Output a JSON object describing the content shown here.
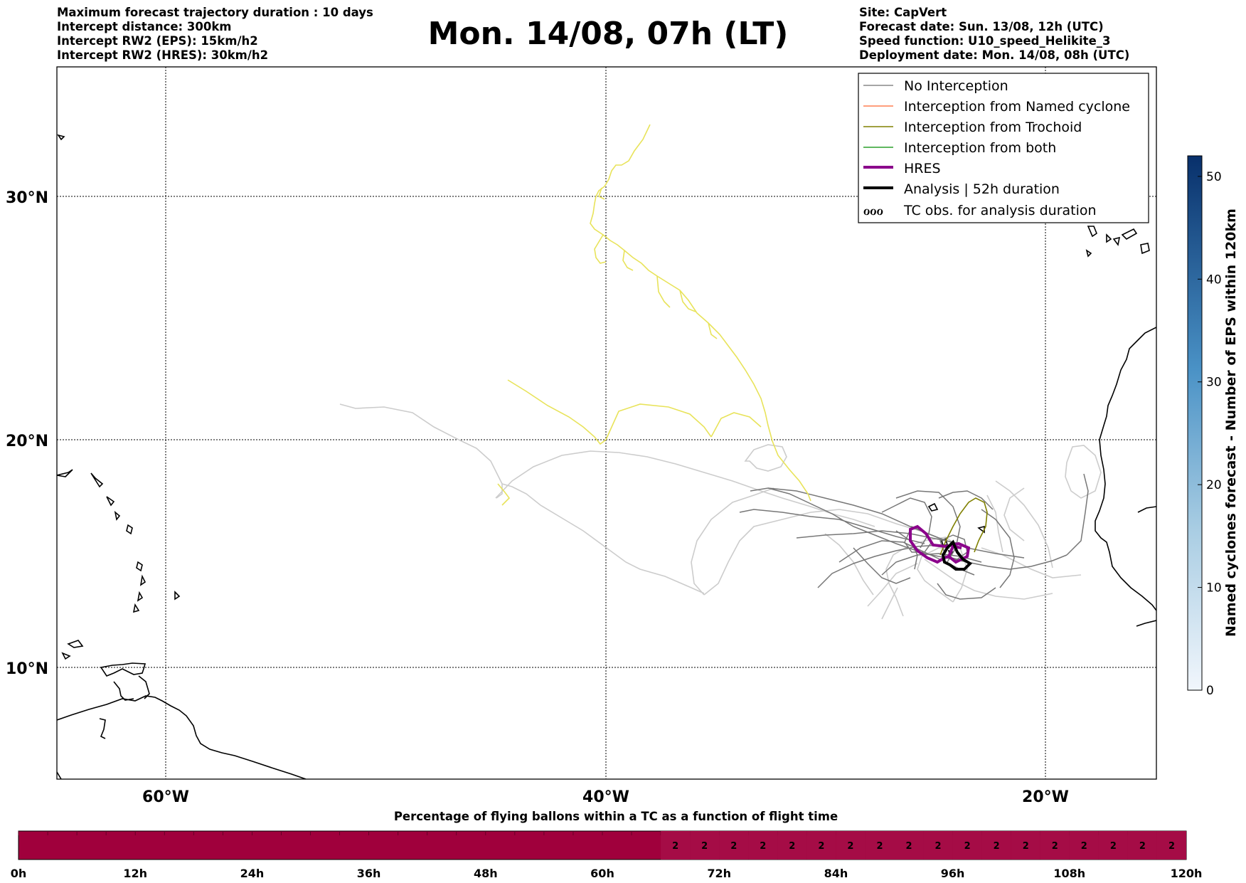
{
  "header": {
    "left_lines": [
      "Maximum forecast trajectory duration : 10 days",
      "Intercept distance: 300km",
      "Intercept RW2 (EPS):  15km/h2",
      "Intercept RW2 (HRES): 30km/h2"
    ],
    "title": "Mon. 14/08, 07h (LT)",
    "right_lines": [
      "Site: CapVert",
      "Forecast date: Sun. 13/08, 12h (UTC)",
      "Speed function: U10_speed_Helikite_3",
      "Deployment date: Mon. 14/08, 08h (UTC)"
    ]
  },
  "map": {
    "lat_labels": [
      "30°N",
      "20°N",
      "10°N"
    ],
    "lon_labels": [
      "60°W",
      "40°W",
      "20°W"
    ],
    "colors": {
      "no_interception": "#888888",
      "no_interception_light": "#cccccc",
      "named_cyclone": "#ff7f50",
      "trochoid": "#808000",
      "both": "#2ca02c",
      "hres": "#8b008b",
      "analysis": "#000000",
      "yellow_track": "#e8e35a"
    },
    "legend": {
      "items": [
        {
          "label": "No Interception",
          "style": "thin-gray"
        },
        {
          "label": "Interception from Named cyclone",
          "style": "thin-coral"
        },
        {
          "label": "Interception from Trochoid",
          "style": "thin-olive"
        },
        {
          "label": "Interception from both",
          "style": "thin-green"
        },
        {
          "label": "HRES",
          "style": "thick-purple"
        },
        {
          "label": "Analysis | 52h duration",
          "style": "thick-black"
        },
        {
          "label": "TC obs. for analysis duration",
          "style": "cyclone-symbols"
        }
      ],
      "cyclone_symbols": "ℴℴℴ"
    }
  },
  "colorbar": {
    "label": "Named cyclones forecast - Number of EPS within 120km",
    "ticks": [
      "0",
      "10",
      "20",
      "30",
      "40",
      "50"
    ],
    "min": 0,
    "max": 52,
    "color_low": "#e8f0fa",
    "color_high": "#08306b"
  },
  "timebar": {
    "title": "Percentage of flying ballons within a TC as a function of flight time",
    "ticks": [
      "0h",
      "12h",
      "24h",
      "36h",
      "48h",
      "60h",
      "72h",
      "84h",
      "96h",
      "108h",
      "120h"
    ],
    "fill_color": "#a0003c",
    "segment_value": "2",
    "labeled_segments_from_h": 66,
    "segment_step_h": 3
  }
}
